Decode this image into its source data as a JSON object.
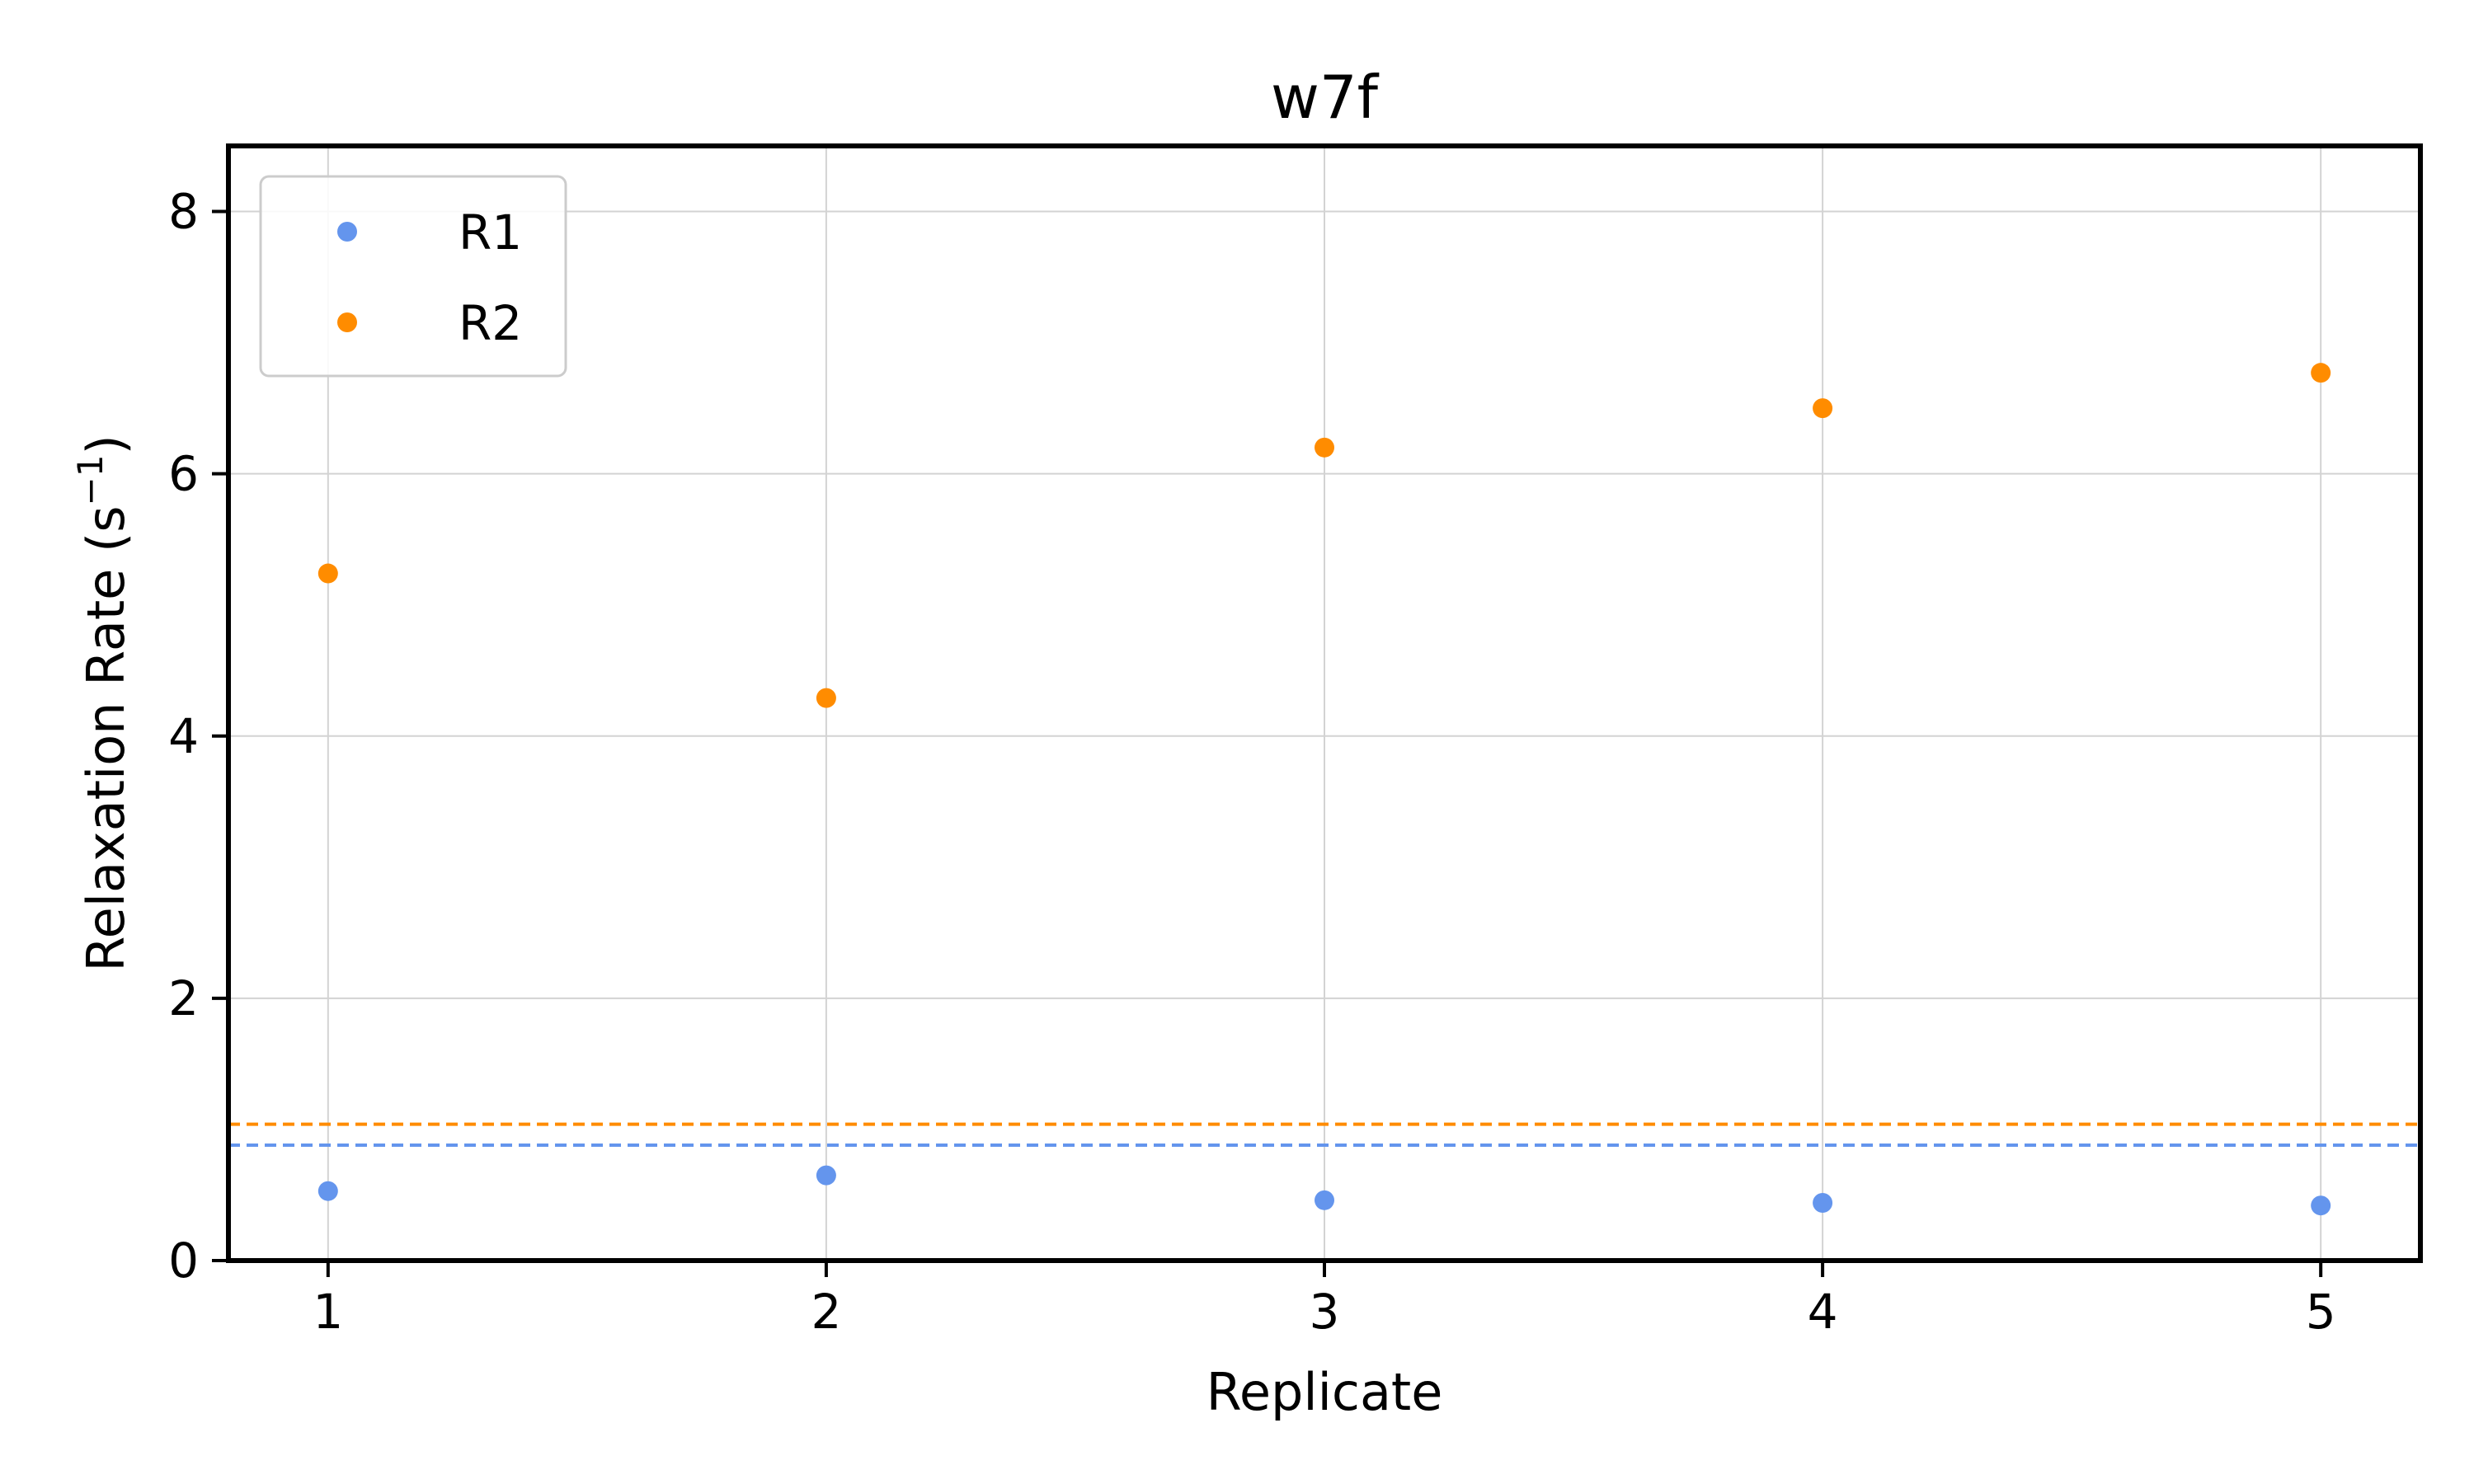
{
  "chart_data": {
    "type": "scatter",
    "title": "w7f",
    "xlabel": "Replicate",
    "ylabel_main": "Relaxation Rate (s",
    "ylabel_sup": "−1",
    "ylabel_close": ")",
    "xlim": [
      0.8,
      5.2
    ],
    "ylim": [
      0,
      8.5
    ],
    "xticks": [
      1,
      2,
      3,
      4,
      5
    ],
    "yticks": [
      0,
      2,
      4,
      6,
      8
    ],
    "grid": true,
    "legend_position": "top-left",
    "x": [
      1,
      2,
      3,
      4,
      5
    ],
    "series": [
      {
        "name": "R1",
        "color": "#6495ED",
        "values": [
          0.53,
          0.65,
          0.46,
          0.44,
          0.42
        ],
        "reference_line": 0.88
      },
      {
        "name": "R2",
        "color": "#FF8C00",
        "values": [
          5.24,
          4.29,
          6.2,
          6.5,
          6.77
        ],
        "reference_line": 1.04
      }
    ]
  }
}
